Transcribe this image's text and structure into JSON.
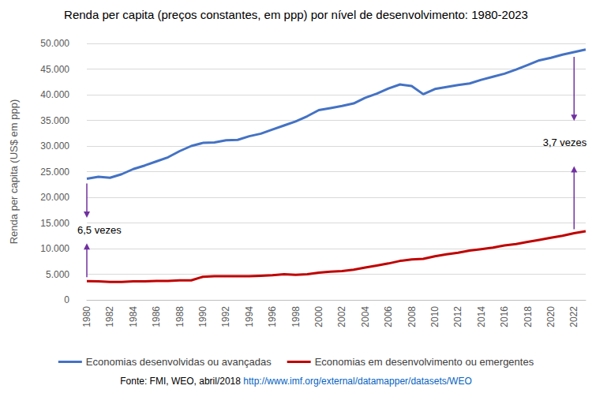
{
  "chart_data": {
    "type": "line",
    "title": "Renda per capita (preços constantes, em ppp) por nível de desenvolvimento: 1980-2023",
    "y_label": "Renda per capita (US$ em ppp)",
    "categories": [
      "1980",
      null,
      "1982",
      null,
      "1984",
      null,
      "1986",
      null,
      "1988",
      null,
      "1990",
      null,
      "1992",
      null,
      "1994",
      null,
      "1996",
      null,
      "1998",
      null,
      "2000",
      null,
      "2002",
      null,
      "2004",
      null,
      "2006",
      null,
      "2008",
      null,
      "2010",
      null,
      "2012",
      null,
      "2014",
      null,
      "2016",
      null,
      "2018",
      null,
      "2020",
      null,
      "2022",
      null
    ],
    "series": [
      {
        "name": "Economias desenvolvidas ou avançadas",
        "color": "#4472c4",
        "values": [
          23600,
          24000,
          23800,
          24500,
          25500,
          26200,
          27000,
          27800,
          29000,
          30000,
          30600,
          30700,
          31100,
          31200,
          31900,
          32400,
          33200,
          34000,
          34800,
          35800,
          37000,
          37400,
          37800,
          38300,
          39400,
          40200,
          41200,
          42000,
          41700,
          40100,
          41100,
          41500,
          41900,
          42200,
          42900,
          43500,
          44100,
          44900,
          45800,
          46700,
          47200,
          47800,
          48300,
          48800
        ]
      },
      {
        "name": "Economias em desenvolvimento ou emergentes",
        "color": "#c00000",
        "values": [
          3650,
          3600,
          3500,
          3500,
          3600,
          3600,
          3700,
          3700,
          3800,
          3800,
          4500,
          4600,
          4600,
          4600,
          4600,
          4700,
          4800,
          5000,
          4900,
          5000,
          5300,
          5500,
          5600,
          5900,
          6300,
          6700,
          7100,
          7600,
          7900,
          8000,
          8500,
          8900,
          9200,
          9600,
          9900,
          10200,
          10600,
          10900,
          11300,
          11700,
          12100,
          12500,
          13000,
          13400
        ]
      }
    ],
    "ylim": [
      0,
      50000
    ],
    "yticks": [
      0,
      {
        "value": 5000,
        "label": "5.000"
      },
      {
        "value": 10000,
        "label": "10.000"
      },
      {
        "value": 15000,
        "label": "15.000"
      },
      {
        "value": 20000,
        "label": "20.000"
      },
      {
        "value": 25000,
        "label": "25.000"
      },
      {
        "value": 30000,
        "label": "30.000"
      },
      {
        "value": 35000,
        "label": "35.000"
      },
      {
        "value": 40000,
        "label": "40.000"
      },
      {
        "value": 45000,
        "label": "45.000"
      },
      {
        "value": 50000,
        "label": "50.000"
      }
    ],
    "grid": true,
    "legend": "bottom",
    "annotations": [
      {
        "text": "6,5 vezes",
        "category": "1980"
      },
      {
        "text": "3,7 vezes",
        "category": "2022"
      }
    ],
    "source": "Fonte: FMI, WEO, abril/2018",
    "source_url": "http://www.imf.org/external/datamapper/datasets/WEO"
  }
}
